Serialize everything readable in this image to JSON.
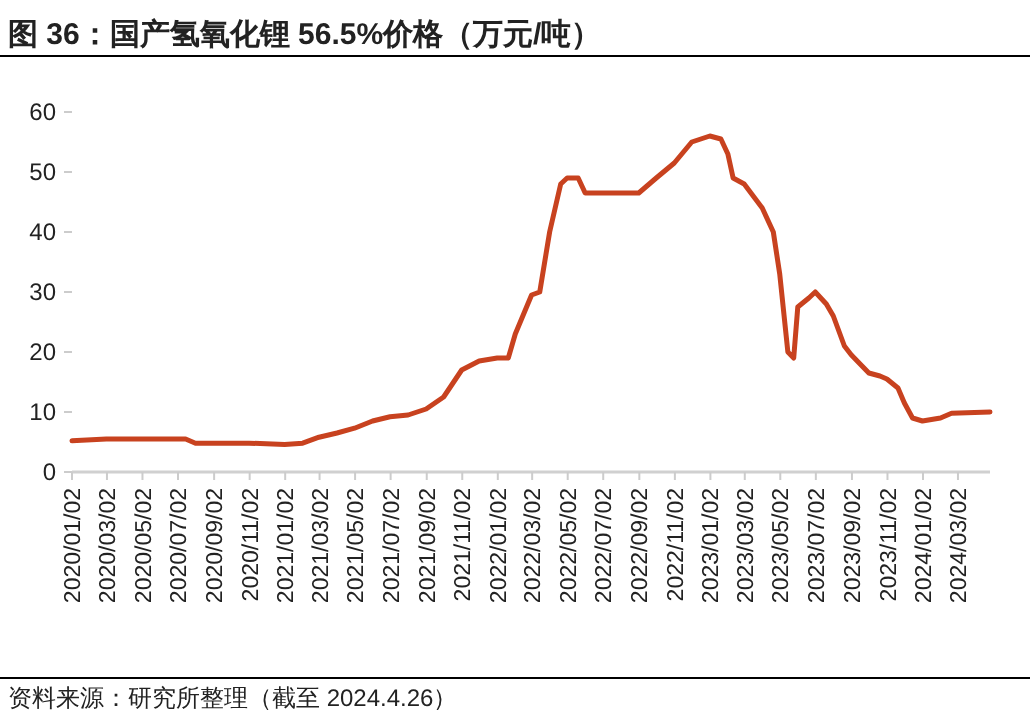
{
  "chart_data": {
    "type": "line",
    "title": "图 36：国产氢氧化锂 56.5%价格（万元/吨）",
    "annotations": [
      "资料来源：研究所整理（截至 2024.4.26）"
    ],
    "x": [
      "2020-01-02",
      "2020-03-01",
      "2020-07-15",
      "2020-08-01",
      "2020-11-01",
      "2021-01-01",
      "2021-02-01",
      "2021-03-01",
      "2021-04-01",
      "2021-05-01",
      "2021-06-01",
      "2021-07-01",
      "2021-08-01",
      "2021-09-01",
      "2021-10-01",
      "2021-11-01",
      "2021-12-01",
      "2022-01-01",
      "2022-01-20",
      "2022-02-01",
      "2022-03-01",
      "2022-03-15",
      "2022-04-01",
      "2022-04-20",
      "2022-05-01",
      "2022-05-20",
      "2022-06-01",
      "2022-09-01",
      "2022-10-01",
      "2022-11-01",
      "2022-12-01",
      "2023-01-01",
      "2023-01-20",
      "2023-02-01",
      "2023-02-10",
      "2023-03-01",
      "2023-04-01",
      "2023-04-20",
      "2023-05-01",
      "2023-05-15",
      "2023-05-25",
      "2023-06-01",
      "2023-06-20",
      "2023-07-01",
      "2023-07-20",
      "2023-08-01",
      "2023-08-20",
      "2023-09-01",
      "2023-10-01",
      "2023-10-20",
      "2023-11-01",
      "2023-11-20",
      "2023-12-01",
      "2023-12-15",
      "2024-01-01",
      "2024-02-01",
      "2024-02-20",
      "2024-04-26"
    ],
    "series": [
      {
        "color": "#c8421f",
        "values": [
          5.2,
          5.5,
          5.5,
          4.8,
          4.8,
          4.6,
          4.8,
          5.8,
          6.5,
          7.3,
          8.5,
          9.2,
          9.5,
          10.5,
          12.5,
          17,
          18.5,
          19,
          19,
          23,
          29.5,
          30,
          40,
          48,
          49,
          49,
          46.5,
          46.5,
          49,
          51.5,
          55,
          56,
          55.5,
          53,
          49,
          48,
          44,
          40,
          33,
          20,
          19,
          27.5,
          29,
          30,
          28,
          26,
          21,
          19.5,
          16.5,
          16,
          15.5,
          14,
          11.5,
          9,
          8.5,
          9,
          9.8,
          10
        ]
      }
    ],
    "xlim": [
      "2020-01-02",
      "2024-04-26"
    ],
    "xticks": [
      {
        "value": "2020-01-02",
        "label": "2020/01/02"
      },
      {
        "value": "2020-03-02",
        "label": "2020/03/02"
      },
      {
        "value": "2020-05-02",
        "label": "2020/05/02"
      },
      {
        "value": "2020-07-02",
        "label": "2020/07/02"
      },
      {
        "value": "2020-09-02",
        "label": "2020/09/02"
      },
      {
        "value": "2020-11-02",
        "label": "2020/11/02"
      },
      {
        "value": "2021-01-02",
        "label": "2021/01/02"
      },
      {
        "value": "2021-03-02",
        "label": "2021/03/02"
      },
      {
        "value": "2021-05-02",
        "label": "2021/05/02"
      },
      {
        "value": "2021-07-02",
        "label": "2021/07/02"
      },
      {
        "value": "2021-09-02",
        "label": "2021/09/02"
      },
      {
        "value": "2021-11-02",
        "label": "2021/11/02"
      },
      {
        "value": "2022-01-02",
        "label": "2022/01/02"
      },
      {
        "value": "2022-03-02",
        "label": "2022/03/02"
      },
      {
        "value": "2022-05-02",
        "label": "2022/05/02"
      },
      {
        "value": "2022-07-02",
        "label": "2022/07/02"
      },
      {
        "value": "2022-09-02",
        "label": "2022/09/02"
      },
      {
        "value": "2022-11-02",
        "label": "2022/11/02"
      },
      {
        "value": "2023-01-02",
        "label": "2023/01/02"
      },
      {
        "value": "2023-03-02",
        "label": "2023/03/02"
      },
      {
        "value": "2023-05-02",
        "label": "2023/05/02"
      },
      {
        "value": "2023-07-02",
        "label": "2023/07/02"
      },
      {
        "value": "2023-09-02",
        "label": "2023/09/02"
      },
      {
        "value": "2023-11-02",
        "label": "2023/11/02"
      },
      {
        "value": "2024-01-02",
        "label": "2024/01/02"
      },
      {
        "value": "2024-03-02",
        "label": "2024/03/02"
      }
    ],
    "ylim": [
      0,
      60
    ],
    "yticks": [
      0,
      10,
      20,
      30,
      40,
      50,
      60
    ],
    "grid": false,
    "line_style": "solid",
    "marker": "none"
  }
}
